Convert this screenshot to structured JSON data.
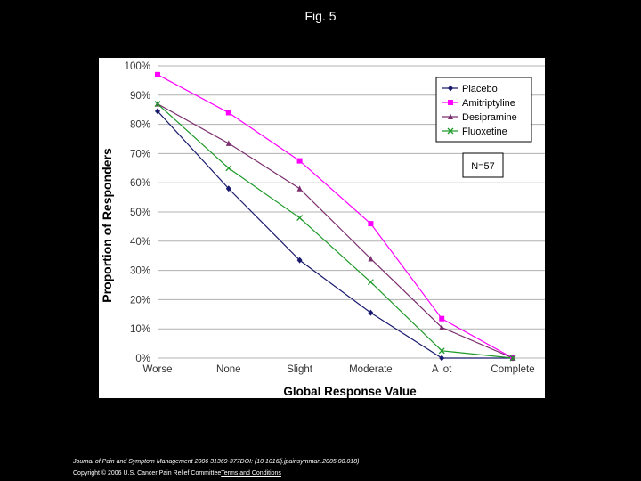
{
  "slide": {
    "title": "Fig. 5",
    "citation": "Journal of Pain and Symptom Management 2006 31369-377DOI: (10.1016/j.jpainsymman.2005.08.018)",
    "copyright": "Copyright © 2006 U.S. Cancer Pain Relief Committee",
    "terms_link": "Terms and Conditions"
  },
  "chart_data": {
    "type": "line",
    "title": "",
    "xlabel": "Global Response Value",
    "ylabel": "Proportion of Responders",
    "categories": [
      "Worse",
      "None",
      "Slight",
      "Moderate",
      "A lot",
      "Complete"
    ],
    "ylim": [
      0,
      100
    ],
    "y_ticks": [
      "0%",
      "10%",
      "20%",
      "30%",
      "40%",
      "50%",
      "60%",
      "70%",
      "80%",
      "90%",
      "100%"
    ],
    "grid": true,
    "legend_position": "top-right",
    "annotation": "N=57",
    "series": [
      {
        "name": "Placebo",
        "color": "#1a1a6e",
        "marker": "diamond",
        "values": [
          84.5,
          58,
          33.5,
          15.5,
          0,
          0
        ]
      },
      {
        "name": "Amitriptyline",
        "color": "#ff00ff",
        "marker": "square",
        "values": [
          97,
          84,
          67.5,
          46,
          13.5,
          0
        ]
      },
      {
        "name": "Desipramine",
        "color": "#7b2f6e",
        "marker": "triangle",
        "values": [
          87,
          73.5,
          58,
          34,
          10.5,
          0
        ]
      },
      {
        "name": "Fluoxetine",
        "color": "#1f9a2a",
        "marker": "x",
        "values": [
          87,
          65,
          48,
          26,
          2.5,
          0
        ]
      }
    ]
  }
}
